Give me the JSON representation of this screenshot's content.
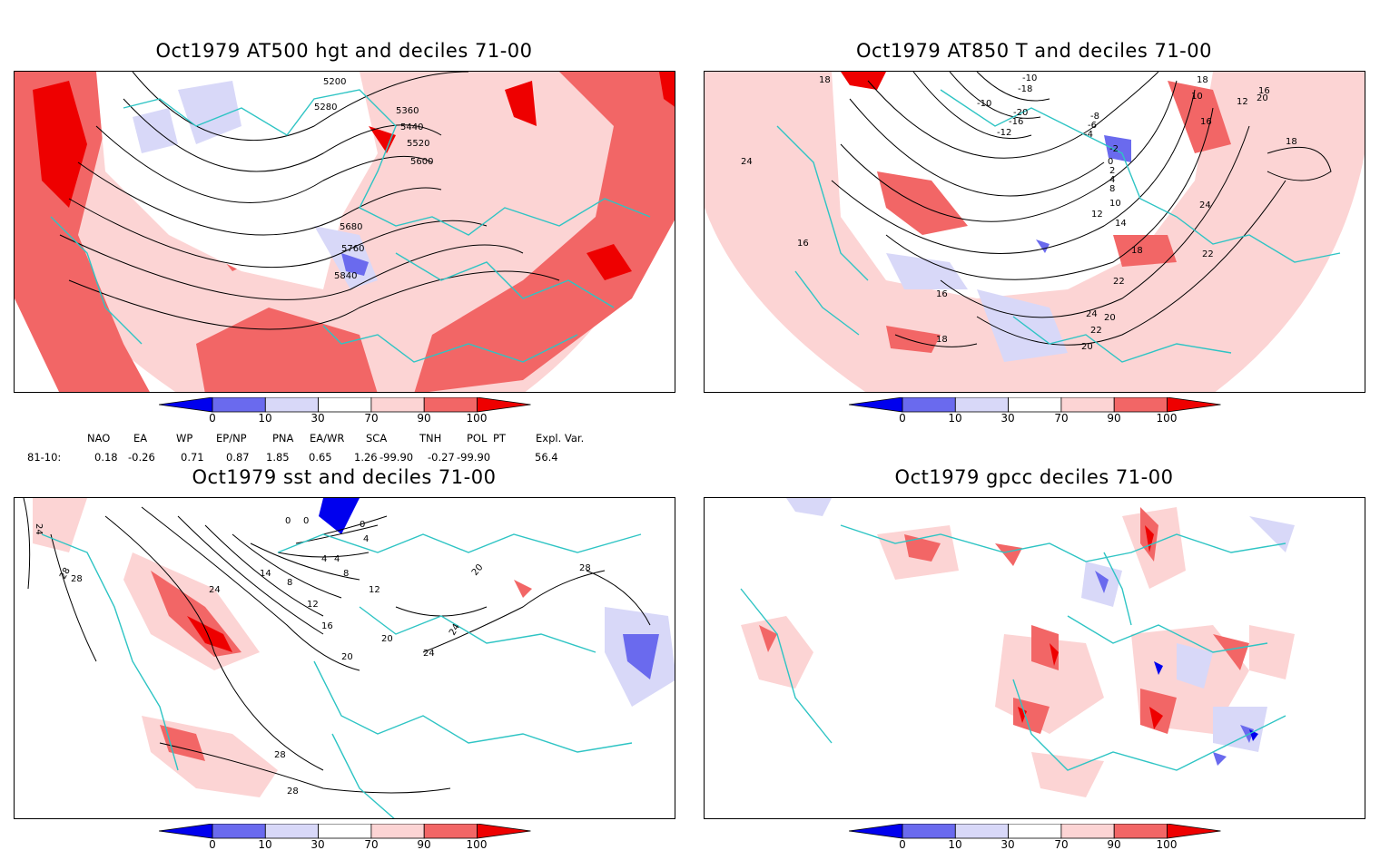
{
  "panels": {
    "hgt": {
      "title": "Oct1979 AT500 hgt and deciles 71-00",
      "contour_labels": [
        "5200",
        "5280",
        "5360",
        "5440",
        "5520",
        "5600",
        "5680",
        "5760",
        "5840"
      ]
    },
    "t850": {
      "title": "Oct1979 AT850 T and deciles 71-00",
      "contour_labels": [
        "18",
        "-10",
        "-18",
        "-20",
        "-16",
        "-12",
        "-10",
        "-8",
        "-6",
        "-4",
        "-2",
        "0",
        "2",
        "4",
        "8",
        "10",
        "12",
        "14",
        "16",
        "18",
        "20",
        "22",
        "24",
        "16",
        "16",
        "18",
        "16",
        "22",
        "24",
        "24",
        "22",
        "20",
        "18",
        "10",
        "12",
        "20",
        "18",
        "16"
      ]
    },
    "sst": {
      "title": "Oct1979 sst and deciles 71-00",
      "contour_labels": [
        "24",
        "28",
        "0",
        "0",
        "0",
        "4",
        "4",
        "8",
        "12",
        "16",
        "20",
        "24",
        "28",
        "8",
        "4",
        "12",
        "20",
        "24",
        "20",
        "24",
        "28",
        "28",
        "28",
        "14"
      ]
    },
    "gpcc": {
      "title": "Oct1979 gpcc deciles 71-00"
    }
  },
  "colorbar": {
    "ticks": [
      "0",
      "10",
      "30",
      "70",
      "90",
      "100"
    ],
    "colors": [
      "#0000ee",
      "#6a6aee",
      "#d8d8f8",
      "#ffffff",
      "#fcd4d4",
      "#f26666",
      "#ee0000"
    ]
  },
  "indices": {
    "header": [
      "NAO",
      "EA",
      "WP",
      "EP/NP",
      "PNA",
      "EA/WR",
      "SCA",
      "TNH",
      "POL",
      "PT",
      "Expl. Var."
    ],
    "row_label": "81-10:",
    "values": [
      "0.18",
      "-0.26",
      "0.71",
      "0.87",
      "1.85",
      "0.65",
      "1.26",
      "-99.90",
      "-0.27",
      "-99.90",
      "56.4"
    ]
  },
  "map_colors": {
    "coast": "#2ec4c4",
    "warm_light": "#fcd4d4",
    "warm_mid": "#f26666",
    "warm_strong": "#ee0000",
    "cold_light": "#d8d8f8",
    "cold_mid": "#6a6aee",
    "cold_strong": "#0000ee"
  }
}
